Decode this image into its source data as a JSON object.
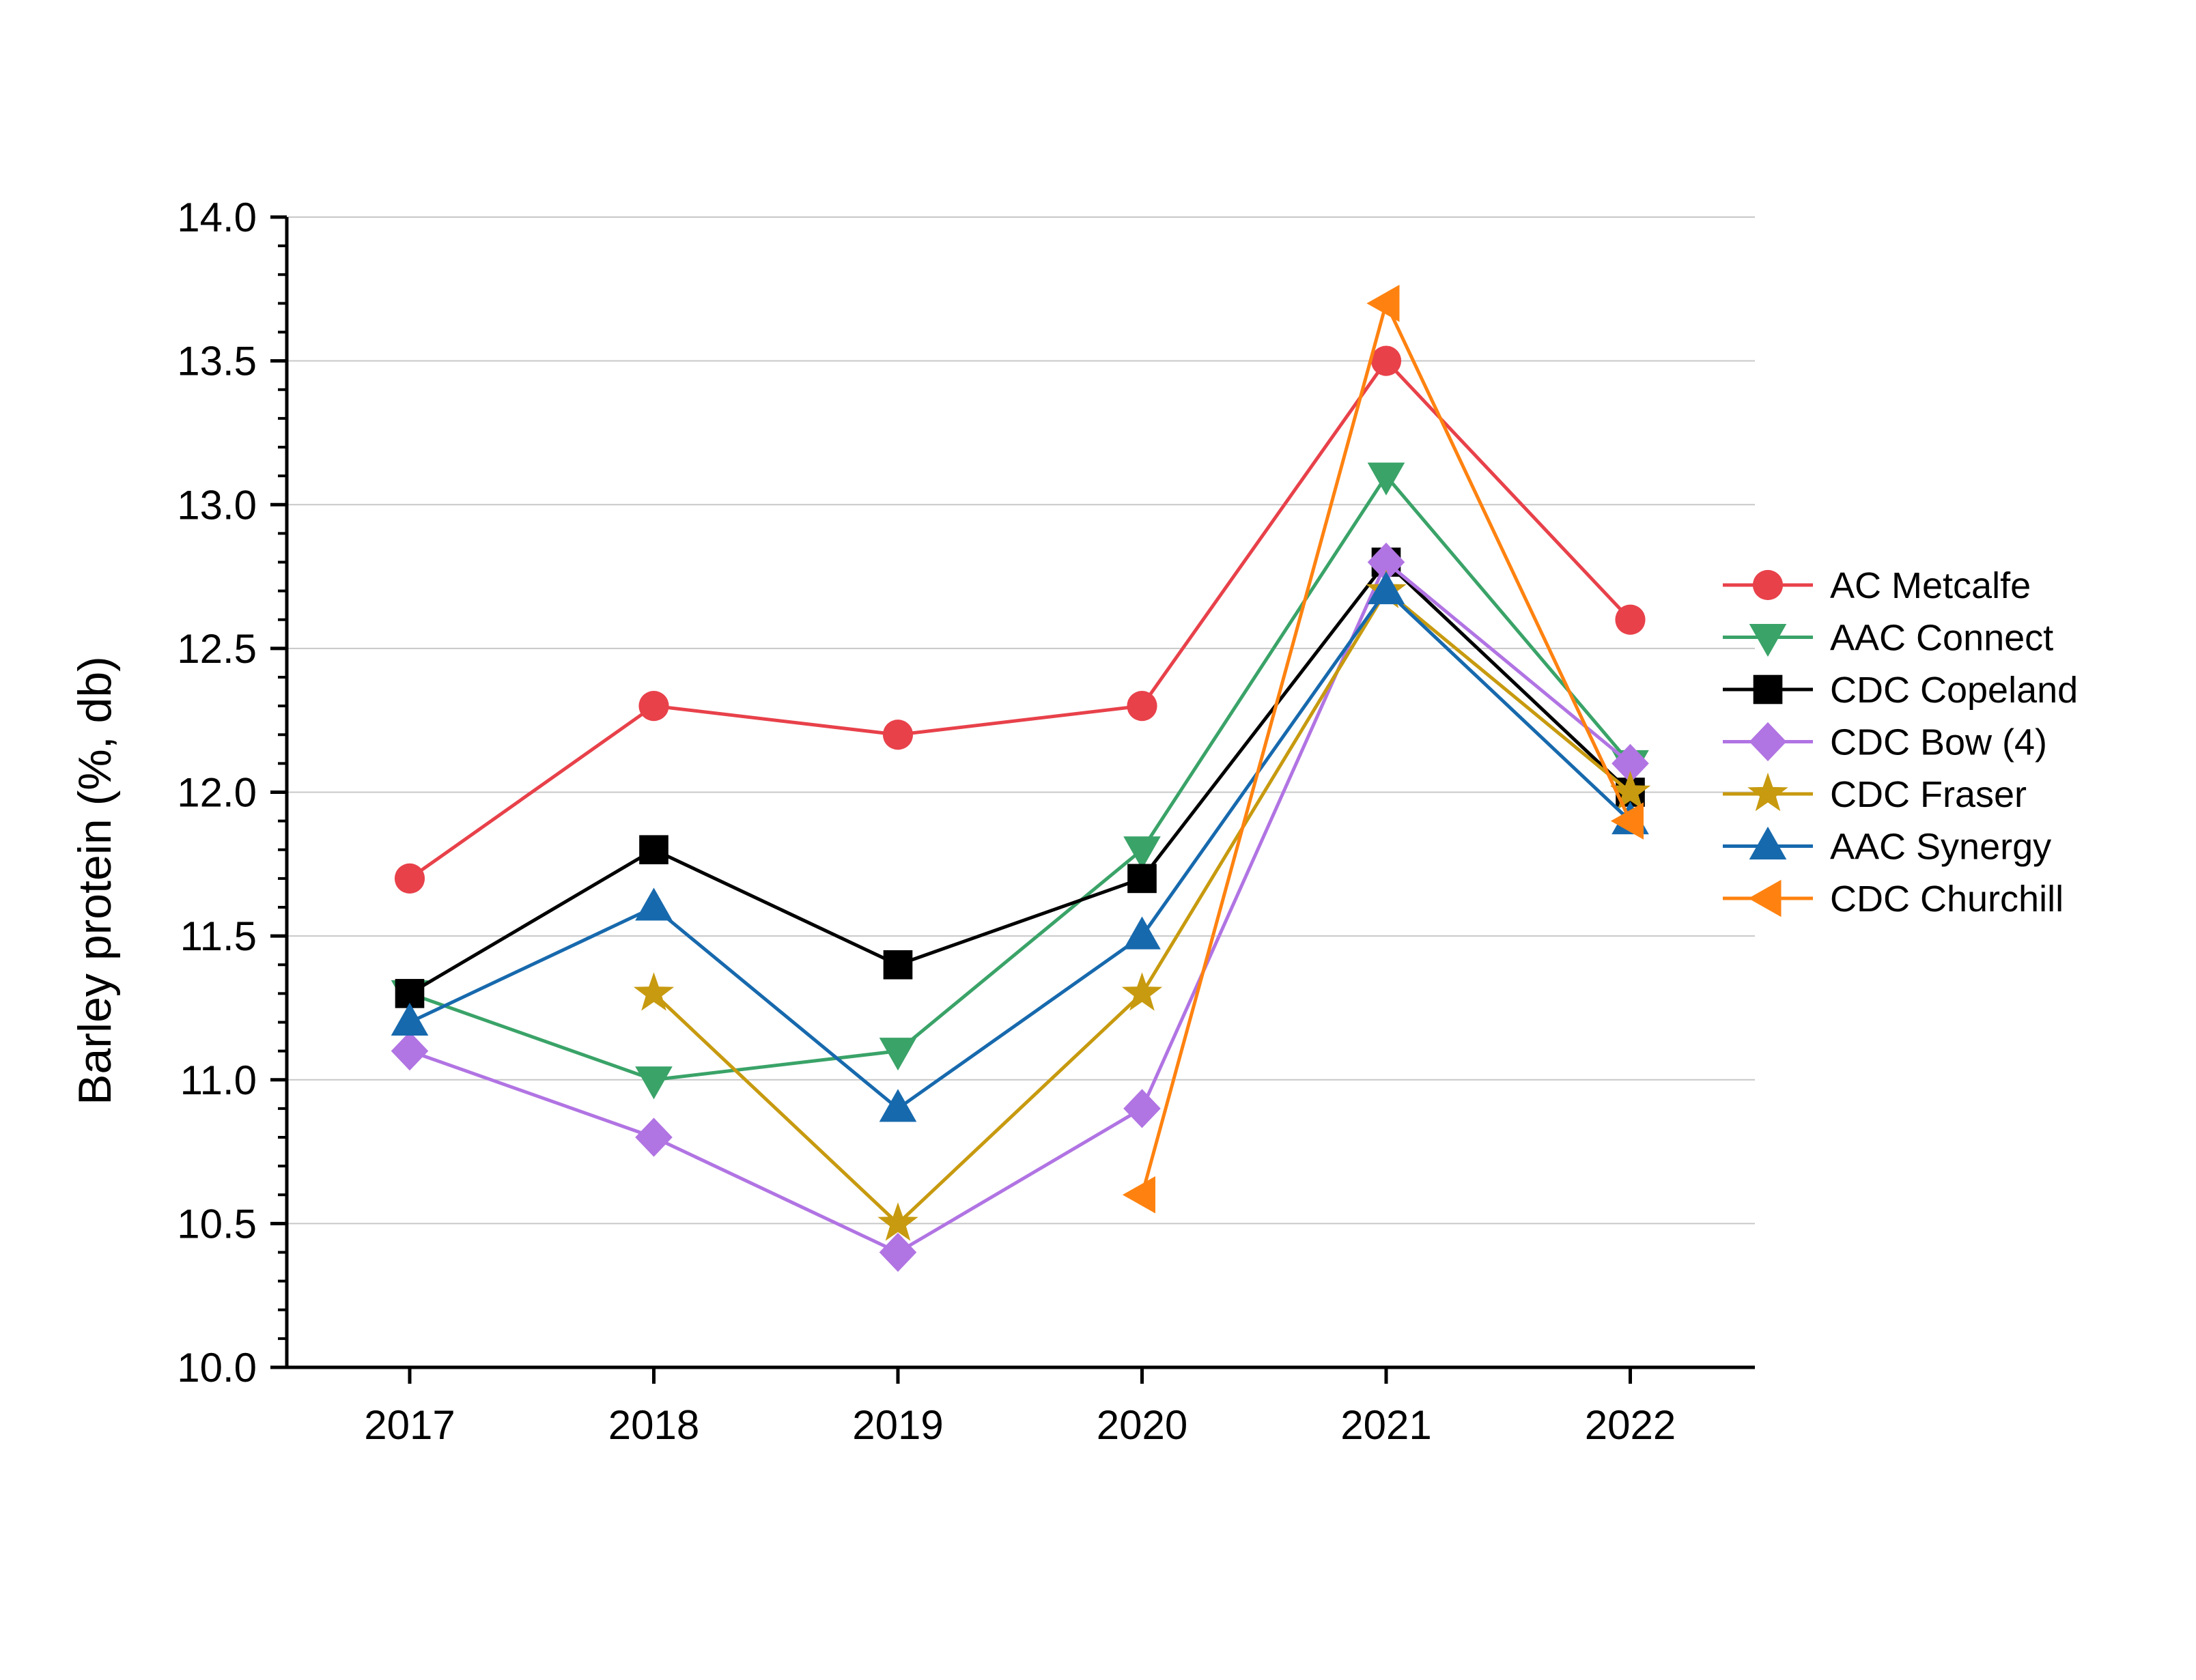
{
  "chart_data": {
    "type": "line",
    "title": "",
    "xlabel": "",
    "ylabel": "Barley protein (%, db)",
    "categories": [
      "2017",
      "2018",
      "2019",
      "2020",
      "2021",
      "2022"
    ],
    "ylim": [
      10.0,
      14.0
    ],
    "yticks": [
      "10.0",
      "10.5",
      "11.0",
      "11.5",
      "12.0",
      "12.5",
      "13.0",
      "13.5",
      "14.0"
    ],
    "grid": "horizontal",
    "legend_position": "right",
    "series": [
      {
        "name": "AC Metcalfe",
        "color": "#e8414a",
        "marker": "circle",
        "values": [
          11.7,
          12.3,
          12.2,
          12.3,
          13.5,
          12.6
        ]
      },
      {
        "name": "AAC Connect",
        "color": "#3aa368",
        "marker": "triangle-down",
        "values": [
          11.3,
          11.0,
          11.1,
          11.8,
          13.1,
          12.1
        ]
      },
      {
        "name": "CDC Copeland",
        "color": "#000000",
        "marker": "square",
        "values": [
          11.3,
          11.8,
          11.4,
          11.7,
          12.8,
          12.0
        ]
      },
      {
        "name": "CDC Bow (4)",
        "color": "#b174e3",
        "marker": "diamond",
        "values": [
          11.1,
          10.8,
          10.4,
          10.9,
          12.8,
          12.1
        ]
      },
      {
        "name": "CDC Fraser",
        "color": "#c79a0f",
        "marker": "star",
        "values": [
          null,
          11.3,
          10.5,
          11.3,
          12.7,
          12.0
        ]
      },
      {
        "name": "AAC Synergy",
        "color": "#1769ad",
        "marker": "triangle-up",
        "values": [
          11.2,
          11.6,
          10.9,
          11.5,
          12.7,
          11.9
        ]
      },
      {
        "name": "CDC Churchill",
        "color": "#ff8210",
        "marker": "triangle-left",
        "values": [
          null,
          null,
          null,
          10.6,
          13.7,
          11.9
        ]
      }
    ]
  }
}
